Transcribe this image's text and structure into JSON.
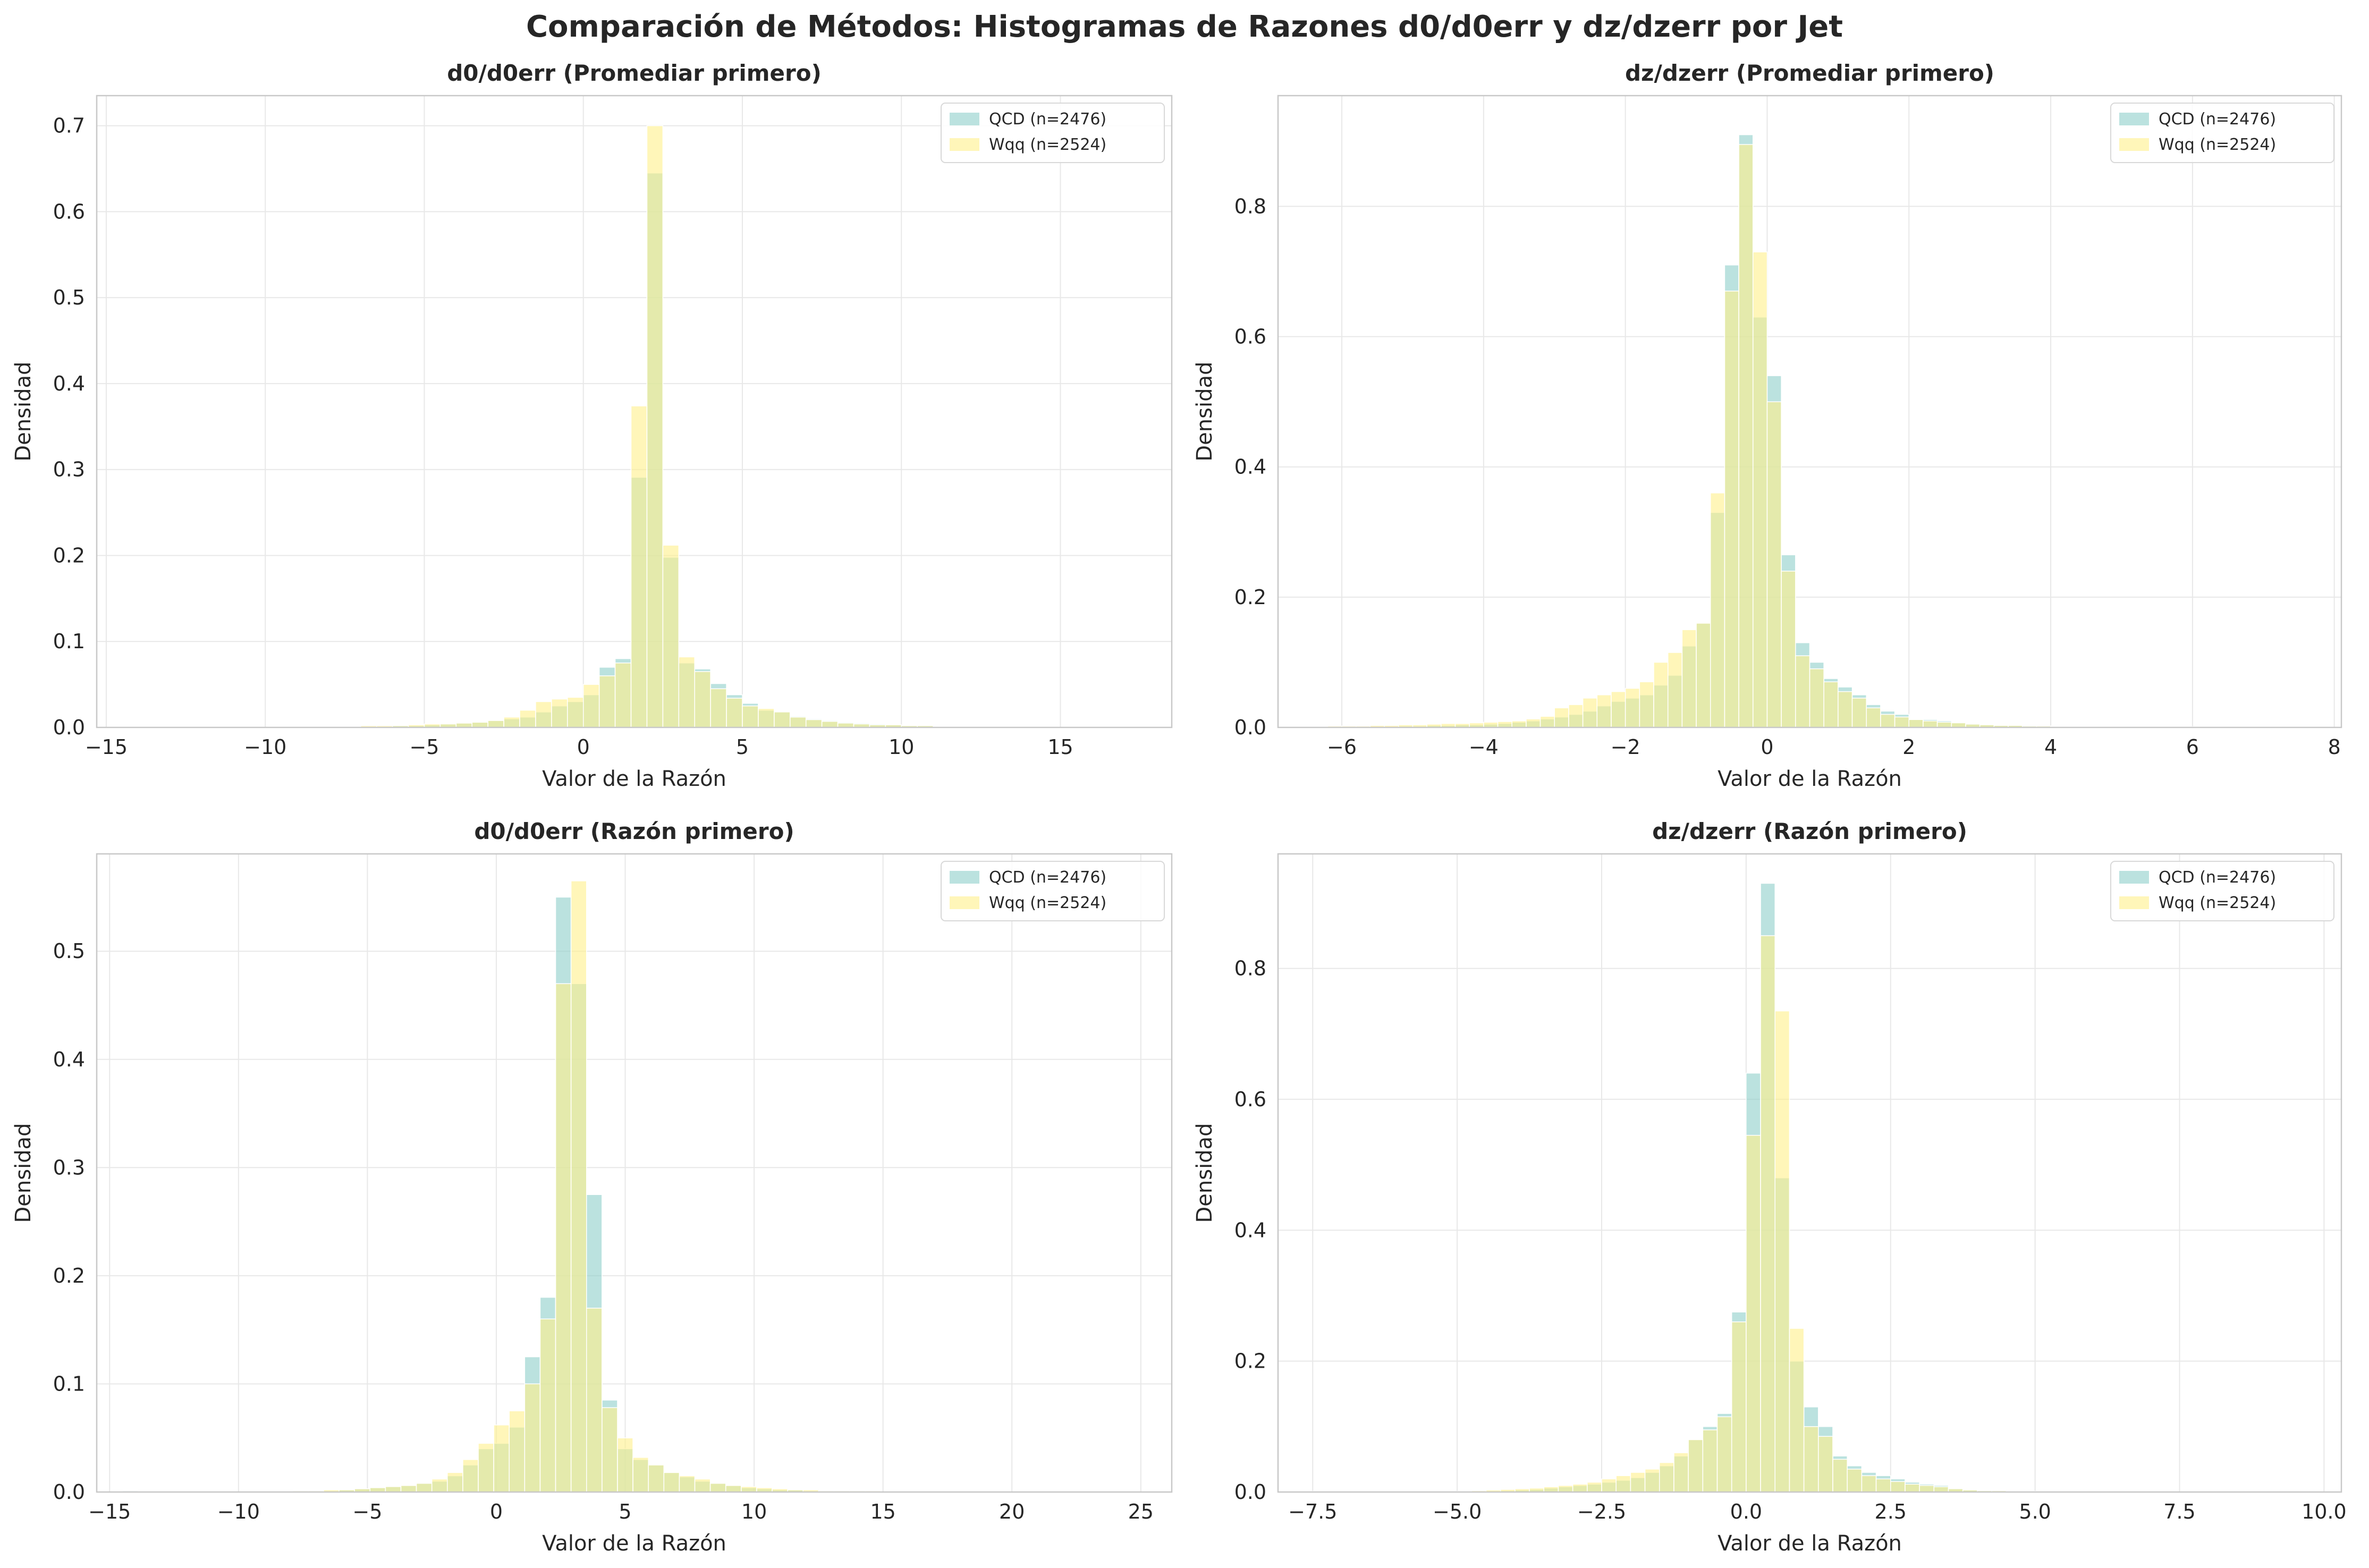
{
  "title": "Comparación de Métodos: Histogramas de Razones d0/d0err y dz/dzerr por Jet",
  "colors": {
    "qcd": "#8ecfc9",
    "wqq": "#fff08a",
    "grid": "#e8e8e8",
    "frame": "#c8c8c8"
  },
  "chart_data": [
    {
      "type": "bar",
      "title": "d0/d0err (Promediar primero)",
      "xlabel": "Valor de la Razón",
      "ylabel": "Densidad",
      "xlim": [
        -15.3,
        18.5
      ],
      "ylim": [
        0,
        0.735
      ],
      "xticks": [
        -15,
        -10,
        -5,
        0,
        5,
        10,
        15
      ],
      "xtick_labels": [
        "−15",
        "−10",
        "−5",
        "0",
        "5",
        "10",
        "15"
      ],
      "yticks": [
        0.0,
        0.1,
        0.2,
        0.3,
        0.4,
        0.5,
        0.6,
        0.7
      ],
      "ytick_labels": [
        "0.0",
        "0.1",
        "0.2",
        "0.3",
        "0.4",
        "0.5",
        "0.6",
        "0.7"
      ],
      "grid": true,
      "legend_position": "top-right",
      "series": [
        {
          "name": "QCD (n=2476)",
          "bin_start": -14.5,
          "bin_width": 0.5,
          "values": [
            0.001,
            0,
            0,
            0,
            0,
            0,
            0,
            0,
            0,
            0,
            0.001,
            0.001,
            0.001,
            0.001,
            0.001,
            0.001,
            0.001,
            0.002,
            0.002,
            0.003,
            0.004,
            0.005,
            0.006,
            0.008,
            0.01,
            0.012,
            0.018,
            0.025,
            0.03,
            0.038,
            0.07,
            0.08,
            0.291,
            0.645,
            0.198,
            0.075,
            0.068,
            0.051,
            0.038,
            0.028,
            0.02,
            0.018,
            0.013,
            0.01,
            0.008,
            0.006,
            0.005,
            0.004,
            0.003,
            0.002,
            0.002,
            0.001,
            0.001,
            0.001,
            0.001,
            0.001,
            0.001,
            0.001,
            0,
            0,
            0,
            0,
            0,
            0,
            0,
            0
          ]
        },
        {
          "name": "Wqq (n=2524)",
          "bin_start": -14.5,
          "bin_width": 0.5,
          "values": [
            0,
            0,
            0,
            0,
            0,
            0,
            0,
            0,
            0,
            0,
            0.001,
            0.001,
            0.001,
            0.001,
            0.001,
            0.002,
            0.002,
            0.002,
            0.003,
            0.004,
            0.004,
            0.005,
            0.006,
            0.008,
            0.012,
            0.02,
            0.03,
            0.033,
            0.035,
            0.05,
            0.06,
            0.075,
            0.374,
            0.7,
            0.212,
            0.082,
            0.065,
            0.045,
            0.034,
            0.025,
            0.022,
            0.018,
            0.012,
            0.009,
            0.007,
            0.005,
            0.004,
            0.003,
            0.003,
            0.002,
            0.002,
            0.001,
            0.001,
            0.001,
            0.001,
            0.001,
            0.001,
            0,
            0,
            0,
            0,
            0,
            0,
            0,
            0,
            0
          ]
        }
      ]
    },
    {
      "type": "bar",
      "title": "dz/dzerr (Promediar primero)",
      "xlabel": "Valor de la Razón",
      "ylabel": "Densidad",
      "xlim": [
        -6.9,
        8.1
      ],
      "ylim": [
        0,
        0.97
      ],
      "xticks": [
        -6,
        -4,
        -2,
        0,
        2,
        4,
        6,
        8
      ],
      "xtick_labels": [
        "−6",
        "−4",
        "−2",
        "0",
        "2",
        "4",
        "6",
        "8"
      ],
      "yticks": [
        0.0,
        0.2,
        0.4,
        0.6,
        0.8
      ],
      "ytick_labels": [
        "0.0",
        "0.2",
        "0.4",
        "0.6",
        "0.8"
      ],
      "grid": true,
      "legend_position": "top-right",
      "series": [
        {
          "name": "QCD (n=2476)",
          "bin_start": -6.2,
          "bin_width": 0.2,
          "values": [
            0.001,
            0.001,
            0.001,
            0.001,
            0.001,
            0.002,
            0.002,
            0.003,
            0.003,
            0.004,
            0.004,
            0.005,
            0.006,
            0.008,
            0.01,
            0.013,
            0.016,
            0.02,
            0.025,
            0.033,
            0.04,
            0.045,
            0.05,
            0.065,
            0.08,
            0.125,
            0.16,
            0.33,
            0.71,
            0.91,
            0.63,
            0.54,
            0.265,
            0.13,
            0.1,
            0.075,
            0.062,
            0.05,
            0.035,
            0.025,
            0.02,
            0.013,
            0.012,
            0.01,
            0.008,
            0.006,
            0.005,
            0.004,
            0.003,
            0.003,
            0.002,
            0.002,
            0.002,
            0.001,
            0.001,
            0.001,
            0.001,
            0.001,
            0.001,
            0.001,
            0.001,
            0.001,
            0.001,
            0.001,
            0.001,
            0.001,
            0.001,
            0.001,
            0.001,
            0
          ]
        },
        {
          "name": "Wqq (n=2524)",
          "bin_start": -6.2,
          "bin_width": 0.2,
          "values": [
            0.002,
            0.002,
            0.002,
            0.003,
            0.003,
            0.004,
            0.004,
            0.005,
            0.006,
            0.006,
            0.007,
            0.008,
            0.009,
            0.01,
            0.013,
            0.017,
            0.03,
            0.035,
            0.045,
            0.05,
            0.055,
            0.06,
            0.07,
            0.1,
            0.115,
            0.15,
            0.16,
            0.36,
            0.67,
            0.895,
            0.73,
            0.5,
            0.24,
            0.11,
            0.09,
            0.07,
            0.055,
            0.045,
            0.03,
            0.02,
            0.016,
            0.012,
            0.01,
            0.008,
            0.007,
            0.005,
            0.004,
            0.003,
            0.003,
            0.002,
            0.002,
            0.001,
            0.001,
            0.001,
            0.001,
            0.001,
            0.001,
            0.001,
            0.001,
            0,
            0,
            0,
            0,
            0,
            0,
            0,
            0,
            0,
            0,
            0
          ]
        }
      ]
    },
    {
      "type": "bar",
      "title": "d0/d0err (Razón primero)",
      "xlabel": "Valor de la Razón",
      "ylabel": "Densidad",
      "xlim": [
        -15.5,
        26.2
      ],
      "ylim": [
        0,
        0.59
      ],
      "xticks": [
        -15,
        -10,
        -5,
        0,
        5,
        10,
        15,
        20,
        25
      ],
      "xtick_labels": [
        "−15",
        "−10",
        "−5",
        "0",
        "5",
        "10",
        "15",
        "20",
        "25"
      ],
      "yticks": [
        0.0,
        0.1,
        0.2,
        0.3,
        0.4,
        0.5
      ],
      "ytick_labels": [
        "0.0",
        "0.1",
        "0.2",
        "0.3",
        "0.4",
        "0.5"
      ],
      "grid": true,
      "legend_position": "top-right",
      "series": [
        {
          "name": "QCD (n=2476)",
          "bin_start": -14.5,
          "bin_width": 0.6,
          "values": [
            0.001,
            0,
            0,
            0,
            0,
            0,
            0,
            0,
            0,
            0,
            0,
            0.001,
            0.001,
            0.001,
            0.002,
            0.003,
            0.004,
            0.005,
            0.006,
            0.008,
            0.01,
            0.015,
            0.025,
            0.04,
            0.045,
            0.06,
            0.125,
            0.18,
            0.55,
            0.47,
            0.275,
            0.085,
            0.04,
            0.03,
            0.025,
            0.018,
            0.014,
            0.01,
            0.008,
            0.006,
            0.004,
            0.003,
            0.002,
            0.002,
            0.001,
            0.001,
            0.001,
            0.001,
            0,
            0,
            0,
            0,
            0,
            0,
            0,
            0,
            0,
            0,
            0,
            0,
            0,
            0,
            0,
            0,
            0,
            0,
            0,
            0,
            0
          ]
        },
        {
          "name": "Wqq (n=2524)",
          "bin_start": -14.5,
          "bin_width": 0.6,
          "values": [
            0,
            0,
            0,
            0,
            0,
            0,
            0,
            0,
            0,
            0,
            0,
            0.001,
            0.001,
            0.002,
            0.002,
            0.003,
            0.004,
            0.005,
            0.006,
            0.008,
            0.012,
            0.018,
            0.03,
            0.045,
            0.062,
            0.075,
            0.1,
            0.16,
            0.47,
            0.565,
            0.17,
            0.078,
            0.05,
            0.032,
            0.025,
            0.018,
            0.015,
            0.012,
            0.008,
            0.006,
            0.005,
            0.004,
            0.003,
            0.002,
            0.002,
            0.001,
            0.001,
            0.001,
            0.001,
            0,
            0,
            0,
            0,
            0,
            0,
            0,
            0,
            0,
            0,
            0,
            0,
            0,
            0,
            0,
            0,
            0,
            0,
            0,
            0
          ]
        }
      ]
    },
    {
      "type": "bar",
      "title": "dz/dzerr (Razón primero)",
      "xlabel": "Valor de la Razón",
      "ylabel": "Densidad",
      "xlim": [
        -8.1,
        10.3
      ],
      "ylim": [
        0,
        0.975
      ],
      "xticks": [
        -7.5,
        -5.0,
        -2.5,
        0.0,
        2.5,
        5.0,
        7.5,
        10.0
      ],
      "xtick_labels": [
        "−7.5",
        "−5.0",
        "−2.5",
        "0.0",
        "2.5",
        "5.0",
        "7.5",
        "10.0"
      ],
      "yticks": [
        0.0,
        0.2,
        0.4,
        0.6,
        0.8
      ],
      "ytick_labels": [
        "0.0",
        "0.2",
        "0.4",
        "0.6",
        "0.8"
      ],
      "grid": true,
      "legend_position": "top-right",
      "series": [
        {
          "name": "QCD (n=2476)",
          "bin_start": -7.5,
          "bin_width": 0.25,
          "values": [
            0.001,
            0,
            0,
            0,
            0,
            0,
            0,
            0,
            0,
            0,
            0.001,
            0.001,
            0.001,
            0.002,
            0.003,
            0.004,
            0.006,
            0.008,
            0.01,
            0.012,
            0.015,
            0.018,
            0.022,
            0.03,
            0.04,
            0.055,
            0.08,
            0.1,
            0.12,
            0.275,
            0.64,
            0.93,
            0.48,
            0.2,
            0.13,
            0.1,
            0.055,
            0.04,
            0.03,
            0.025,
            0.02,
            0.015,
            0.012,
            0.01,
            0.006,
            0.004,
            0.003,
            0.002,
            0.002,
            0.001,
            0.001,
            0.001,
            0.001,
            0,
            0,
            0,
            0,
            0,
            0,
            0,
            0,
            0,
            0,
            0,
            0,
            0,
            0,
            0,
            0,
            0,
            0,
            0,
            0,
            0
          ]
        },
        {
          "name": "Wqq (n=2524)",
          "bin_start": -7.5,
          "bin_width": 0.25,
          "values": [
            0,
            0,
            0,
            0,
            0,
            0,
            0,
            0,
            0,
            0,
            0.001,
            0.002,
            0.003,
            0.004,
            0.005,
            0.006,
            0.008,
            0.01,
            0.012,
            0.015,
            0.02,
            0.025,
            0.03,
            0.035,
            0.045,
            0.06,
            0.08,
            0.095,
            0.115,
            0.26,
            0.545,
            0.85,
            0.735,
            0.25,
            0.1,
            0.085,
            0.05,
            0.035,
            0.025,
            0.02,
            0.016,
            0.012,
            0.01,
            0.008,
            0.005,
            0.003,
            0.002,
            0.002,
            0.001,
            0.001,
            0.001,
            0,
            0,
            0,
            0,
            0,
            0,
            0,
            0,
            0,
            0,
            0,
            0,
            0,
            0,
            0,
            0,
            0,
            0,
            0,
            0,
            0,
            0
          ]
        }
      ]
    }
  ]
}
